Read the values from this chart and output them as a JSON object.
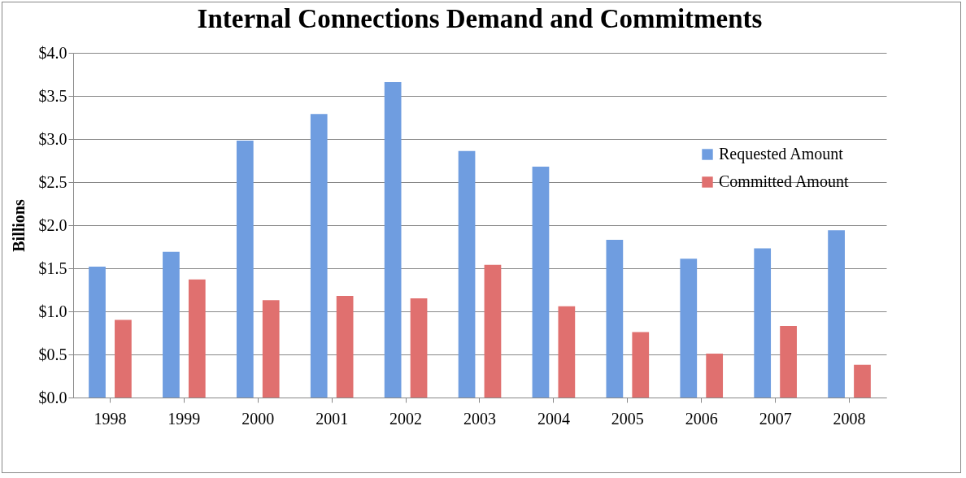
{
  "chart_data": {
    "type": "bar",
    "title": "Internal Connections Demand and Commitments",
    "ylabel": "Billions",
    "categories": [
      "1998",
      "1999",
      "2000",
      "2001",
      "2002",
      "2003",
      "2004",
      "2005",
      "2006",
      "2007",
      "2008"
    ],
    "series": [
      {
        "name": "Requested Amount",
        "color": "#6f9de0",
        "values": [
          1.52,
          1.69,
          2.98,
          3.29,
          3.66,
          2.86,
          2.68,
          1.83,
          1.61,
          1.73,
          1.94
        ]
      },
      {
        "name": "Committed Amount",
        "color": "#e0706f",
        "values": [
          0.9,
          1.37,
          1.13,
          1.18,
          1.15,
          1.54,
          1.06,
          0.76,
          0.51,
          0.83,
          0.38
        ]
      }
    ],
    "ylim": [
      0,
      4
    ],
    "yticks": [
      {
        "value": 0,
        "label": "$0.0"
      },
      {
        "value": 0.5,
        "label": "$0.5"
      },
      {
        "value": 1,
        "label": "$1.0"
      },
      {
        "value": 1.5,
        "label": "$1.5"
      },
      {
        "value": 2,
        "label": "$2.0"
      },
      {
        "value": 2.5,
        "label": "$2.5"
      },
      {
        "value": 3,
        "label": "$3.0"
      },
      {
        "value": 3.5,
        "label": "$3.5"
      },
      {
        "value": 4,
        "label": "$4.0"
      }
    ],
    "grid": "y",
    "legend": "top right"
  }
}
